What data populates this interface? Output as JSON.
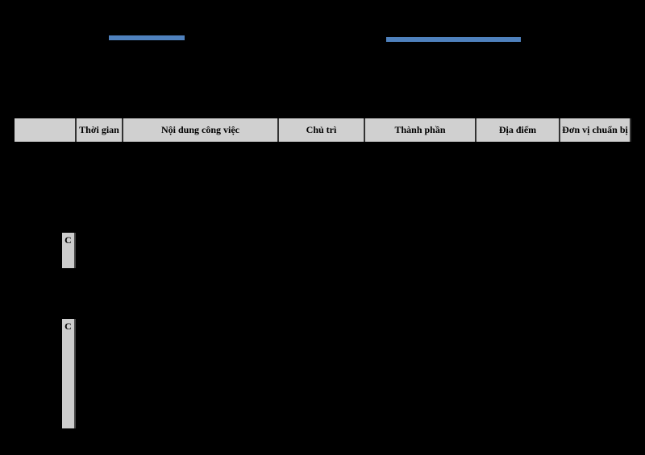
{
  "header_bars": {
    "left_color": "#4f81bd",
    "right_color": "#4f81bd"
  },
  "table": {
    "columns": [
      "",
      "Thời gian",
      "Nội dung công việc",
      "Chủ trì",
      "Thành phần",
      "Địa điểm",
      "Đơn vị chuẩn bị"
    ]
  },
  "side_cells": [
    {
      "label": "C"
    },
    {
      "label": "C"
    }
  ]
}
